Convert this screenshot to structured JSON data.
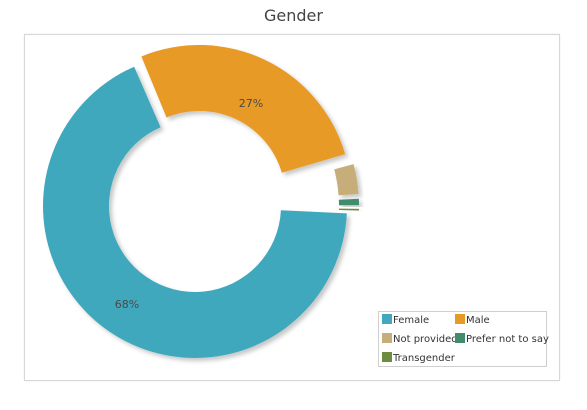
{
  "chart_data": {
    "type": "pie",
    "title": "Gender",
    "donut": true,
    "categories": [
      "Female",
      "Male",
      "Not provided",
      "Prefer not to say",
      "Transgender"
    ],
    "values": [
      68,
      27,
      3.5,
      1,
      0.5
    ],
    "data_labels": [
      "68%",
      "27%",
      "",
      "",
      ""
    ],
    "colors": [
      "#41a8bd",
      "#e89a26",
      "#c6ad79",
      "#3f8d6d",
      "#6e8c3e"
    ],
    "legend_placement": "bottom-right"
  }
}
